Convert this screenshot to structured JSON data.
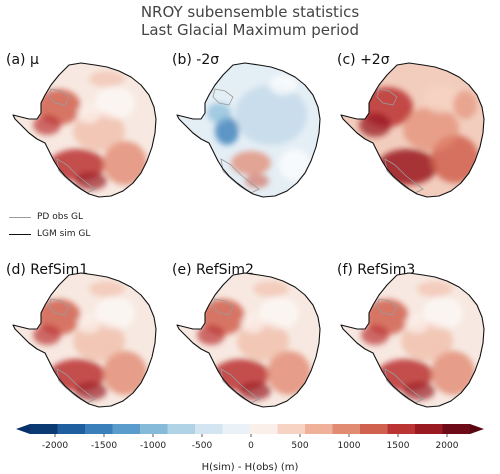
{
  "title": {
    "line1": "NROY subensemble statistics",
    "line2": "Last Glacial Maximum period"
  },
  "panels": [
    {
      "label": "(a) μ",
      "scheme": "warm"
    },
    {
      "label": "(b) -2σ",
      "scheme": "cool"
    },
    {
      "label": "(c) +2σ",
      "scheme": "hot"
    },
    {
      "label": "(d) RefSim1",
      "scheme": "warm"
    },
    {
      "label": "(e) RefSim2",
      "scheme": "warm"
    },
    {
      "label": "(f) RefSim3",
      "scheme": "warm"
    }
  ],
  "legend": {
    "items": [
      {
        "label": "PD obs GL",
        "color": "#9a9a9a"
      },
      {
        "label": "LGM sim GL",
        "color": "#111111"
      }
    ]
  },
  "colorbar": {
    "label": "H(sim) - H(obs) (m)",
    "min": -2000,
    "max": 2000,
    "ticks": [
      "-2000",
      "-1500",
      "-1000",
      "-500",
      "0",
      "500",
      "1000",
      "1500",
      "2000"
    ],
    "colors": [
      "#0b3a73",
      "#1f5fa0",
      "#3b7fba",
      "#5a9ccb",
      "#86bad9",
      "#b1d3e6",
      "#d3e5f0",
      "#eaf2f7",
      "#fbefe9",
      "#f6d3c3",
      "#efb19a",
      "#e28b73",
      "#d1614f",
      "#bb3434",
      "#9a1a22",
      "#6e0b18"
    ]
  }
}
